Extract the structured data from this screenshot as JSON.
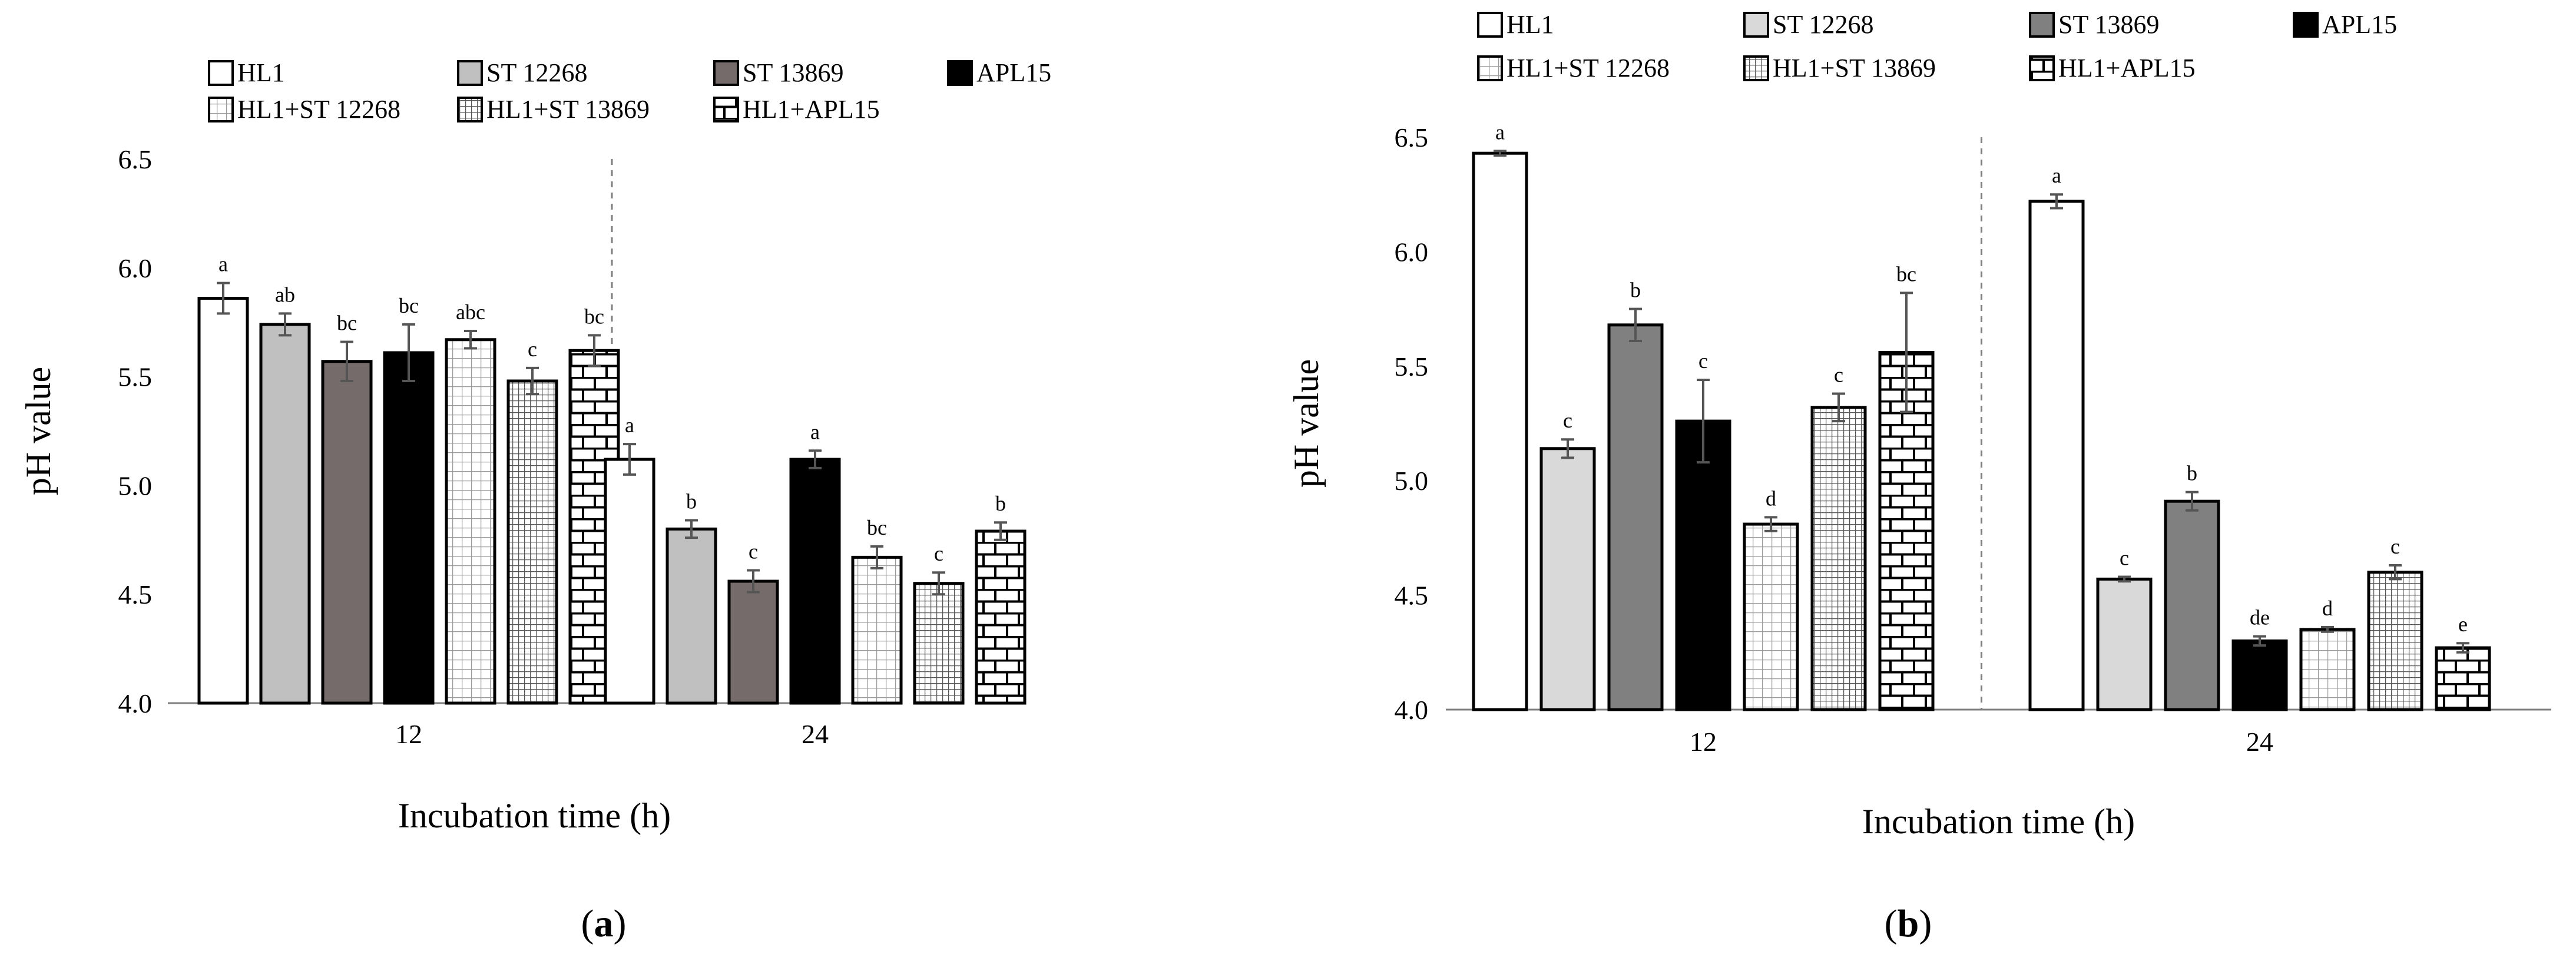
{
  "panels": [
    {
      "panel_label": "(a)",
      "panel_label_parts": [
        "(",
        "a",
        ")"
      ],
      "chart_data": {
        "type": "bar",
        "xlabel": "Incubation time (h)",
        "ylabel": "pH value",
        "ylim": [
          4.0,
          6.5
        ],
        "yticks": [
          "4.0",
          "4.5",
          "5.0",
          "5.5",
          "6.0",
          "6.5"
        ],
        "categories": [
          "12",
          "24"
        ],
        "legend_position": "top",
        "series": [
          {
            "name": "HL1",
            "values": [
              5.86,
              5.12
            ],
            "errors": [
              0.07,
              0.07
            ],
            "letters": [
              "a",
              "a"
            ],
            "fill": "white"
          },
          {
            "name": "ST 12268",
            "values": [
              5.74,
              4.8
            ],
            "errors": [
              0.05,
              0.04
            ],
            "letters": [
              "ab",
              "b"
            ],
            "fill": "#c0c0c0"
          },
          {
            "name": "ST 13869",
            "values": [
              5.57,
              4.56
            ],
            "errors": [
              0.09,
              0.05
            ],
            "letters": [
              "bc",
              "c"
            ],
            "fill": "#756b6b"
          },
          {
            "name": "APL15",
            "values": [
              5.61,
              5.12
            ],
            "errors": [
              0.13,
              0.04
            ],
            "letters": [
              "bc",
              "a"
            ],
            "fill": "#000000"
          },
          {
            "name": "HL1+ST 12268",
            "values": [
              5.67,
              4.67
            ],
            "errors": [
              0.04,
              0.05
            ],
            "letters": [
              "abc",
              "bc"
            ],
            "fill": "grid"
          },
          {
            "name": "HL1+ST 13869",
            "values": [
              5.48,
              4.55
            ],
            "errors": [
              0.06,
              0.05
            ],
            "letters": [
              "c",
              "c"
            ],
            "fill": "finegrid"
          },
          {
            "name": "HL1+APL15",
            "values": [
              5.62,
              4.79
            ],
            "errors": [
              0.07,
              0.04
            ],
            "letters": [
              "bc",
              "b"
            ],
            "fill": "brick"
          }
        ]
      }
    },
    {
      "panel_label": "(b)",
      "panel_label_parts": [
        "(",
        "b",
        ")"
      ],
      "chart_data": {
        "type": "bar",
        "xlabel": "Incubation time (h)",
        "ylabel": "pH value",
        "ylim": [
          4.0,
          6.5
        ],
        "yticks": [
          "4.0",
          "4.5",
          "5.0",
          "5.5",
          "6.0",
          "6.5"
        ],
        "categories": [
          "12",
          "24"
        ],
        "legend_position": "top",
        "series": [
          {
            "name": "HL1",
            "values": [
              6.43,
              6.22
            ],
            "errors": [
              0.01,
              0.03
            ],
            "letters": [
              "a",
              "a"
            ],
            "fill": "white"
          },
          {
            "name": "ST 12268",
            "values": [
              5.14,
              4.57
            ],
            "errors": [
              0.04,
              0.01
            ],
            "letters": [
              "c",
              "c"
            ],
            "fill": "#d9d9d9"
          },
          {
            "name": "ST 13869",
            "values": [
              5.68,
              4.91
            ],
            "errors": [
              0.07,
              0.04
            ],
            "letters": [
              "b",
              "b"
            ],
            "fill": "#808080"
          },
          {
            "name": "APL15",
            "values": [
              5.26,
              4.3
            ],
            "errors": [
              0.18,
              0.02
            ],
            "letters": [
              "c",
              "de"
            ],
            "fill": "#000000"
          },
          {
            "name": "HL1+ST 12268",
            "values": [
              4.81,
              4.35
            ],
            "errors": [
              0.03,
              0.01
            ],
            "letters": [
              "d",
              "d"
            ],
            "fill": "grid"
          },
          {
            "name": "HL1+ST 13869",
            "values": [
              5.32,
              4.6
            ],
            "errors": [
              0.06,
              0.03
            ],
            "letters": [
              "c",
              "c"
            ],
            "fill": "finegrid"
          },
          {
            "name": "HL1+APL15",
            "values": [
              5.56,
              4.27
            ],
            "errors": [
              0.26,
              0.02
            ],
            "letters": [
              "bc",
              "e"
            ],
            "fill": "brick"
          }
        ]
      }
    }
  ]
}
